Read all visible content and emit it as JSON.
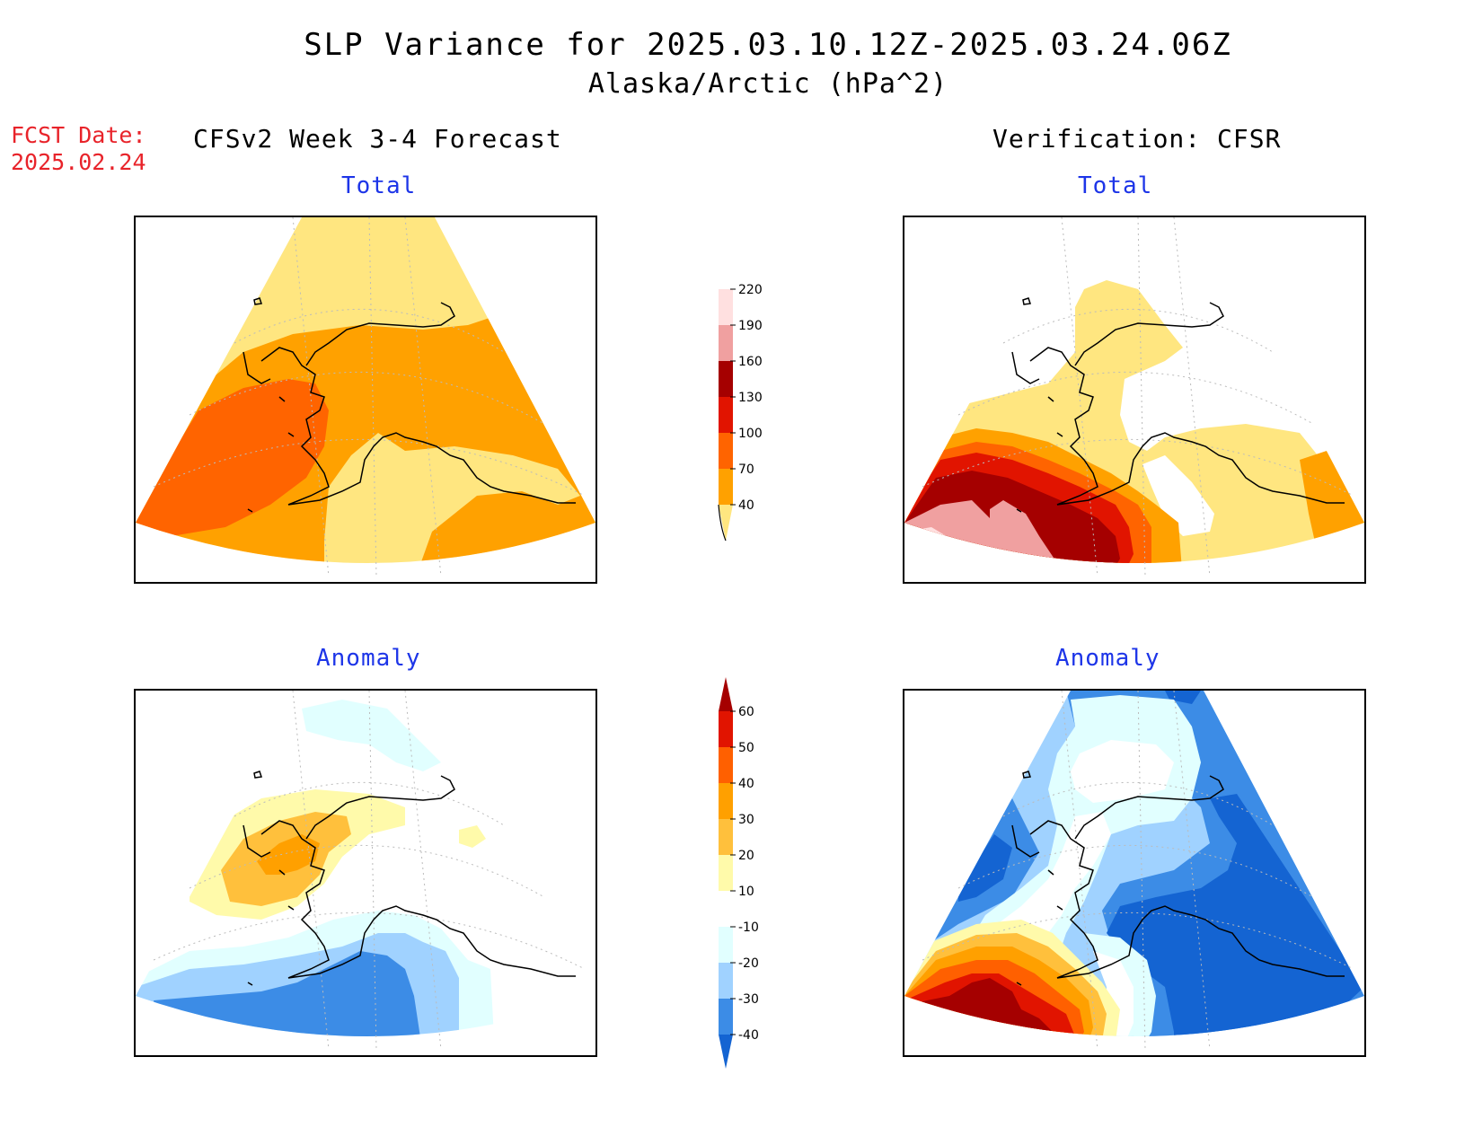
{
  "header": {
    "title": "SLP Variance for 2025.03.10.12Z-2025.03.24.06Z",
    "subtitle": "Alaska/Arctic (hPa^2)",
    "fcst_label": "FCST Date:",
    "fcst_date": "2025.02.24"
  },
  "columns": {
    "left": "CFSv2 Week 3-4 Forecast",
    "right": "Verification: CFSR"
  },
  "panels": {
    "forecast_total": "Total",
    "verification_total": "Total",
    "forecast_anomaly": "Anomaly",
    "verification_anomaly": "Anomaly"
  },
  "colorbars": {
    "total": {
      "labels": [
        "40",
        "70",
        "100",
        "130",
        "160",
        "190",
        "220"
      ],
      "colors": [
        "#ffe680",
        "#ffa100",
        "#ff6400",
        "#e11400",
        "#a50000",
        "#f0a0a0",
        "#ffe0e0"
      ]
    },
    "anomaly": {
      "labels": [
        "-40",
        "-30",
        "-20",
        "-10",
        "10",
        "20",
        "30",
        "40",
        "50",
        "60"
      ],
      "colors": [
        "#1464d2",
        "#3c8ce6",
        "#a0d2ff",
        "#e1ffff",
        "#ffffff",
        "#fffaaa",
        "#ffc03c",
        "#ffa000",
        "#ff6000",
        "#e11400",
        "#a50000"
      ]
    }
  },
  "colors": {
    "title": "#000000",
    "fcst": "#e8232a",
    "subtitle": "#1d35e8"
  }
}
